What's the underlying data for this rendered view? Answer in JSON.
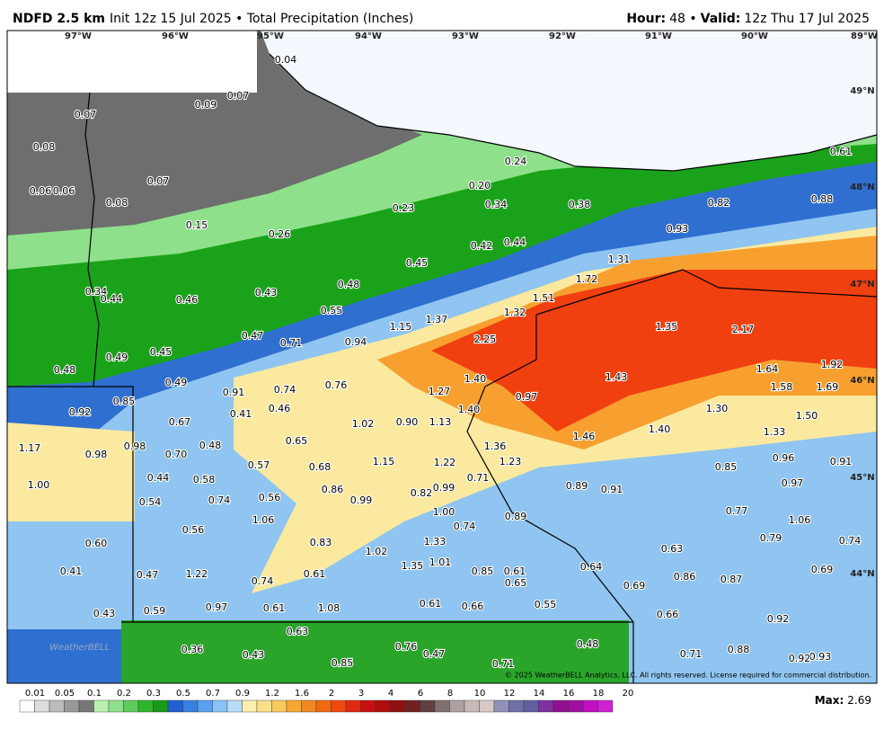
{
  "header": {
    "model": "NDFD 2.5 km",
    "info": "Init 12z 15 Jul 2025 • Total Precipitation (Inches)",
    "hour_label": "Hour:",
    "hour": "48 •",
    "valid_label": "Valid:",
    "valid": "12z Thu 17 Jul 2025"
  },
  "map": {
    "longitudes": [
      "97°W",
      "96°W",
      "95°W",
      "94°W",
      "93°W",
      "92°W",
      "91°W",
      "90°W",
      "89°W"
    ],
    "latitudes": [
      "49°N",
      "48°N",
      "47°N",
      "46°N",
      "45°N",
      "44°N"
    ],
    "labels": [
      "0.04",
      "0.07",
      "0.09",
      "0.07",
      "0.08",
      "0.24",
      "0.61",
      "0.06",
      "0.06",
      "0.07",
      "0.08",
      "0.20",
      "0.88",
      "0.82",
      "0.23",
      "0.34",
      "0.38",
      "0.15",
      "0.93",
      "0.26",
      "0.42",
      "0.44",
      "1.31",
      "0.45",
      "1.72",
      "0.34",
      "0.44",
      "0.46",
      "0.43",
      "0.48",
      "1.51",
      "0.55",
      "1.32",
      "1.37",
      "1.15",
      "1.35",
      "2.17",
      "0.47",
      "0.71",
      "0.94",
      "2.25",
      "0.45",
      "0.49",
      "0.48",
      "1.64",
      "1.92",
      "1.40",
      "1.43",
      "0.49",
      "0.91",
      "0.74",
      "0.76",
      "1.27",
      "0.97",
      "1.58",
      "1.69",
      "0.85",
      "0.92",
      "1.40",
      "0.41",
      "0.46",
      "1.30",
      "1.50",
      "0.67",
      "1.02",
      "0.90",
      "1.13",
      "1.40",
      "1.33",
      "1.46",
      "1.17",
      "0.98",
      "0.98",
      "0.48",
      "0.65",
      "1.36",
      "0.70",
      "1.15",
      "1.22",
      "1.23",
      "0.96",
      "0.91",
      "0.57",
      "0.68",
      "0.85",
      "0.44",
      "0.58",
      "0.71",
      "1.00",
      "0.86",
      "0.99",
      "0.82",
      "0.89",
      "0.91",
      "0.97",
      "0.74",
      "0.56",
      "0.99",
      "0.54",
      "1.00",
      "0.77",
      "0.89",
      "0.74",
      "1.06",
      "1.06",
      "0.56",
      "0.60",
      "0.83",
      "1.33",
      "0.79",
      "0.74",
      "1.02",
      "0.63",
      "1.01",
      "1.35",
      "0.41",
      "0.47",
      "1.22",
      "0.61",
      "0.85",
      "0.61",
      "0.64",
      "0.69",
      "0.86",
      "0.87",
      "0.74",
      "0.65",
      "0.69",
      "0.97",
      "0.61",
      "1.08",
      "0.61",
      "0.66",
      "0.55",
      "0.43",
      "0.59",
      "0.66",
      "0.92",
      "0.63",
      "0.76",
      "0.48",
      "0.36",
      "0.43",
      "0.47",
      "0.71",
      "0.88",
      "0.93",
      "0.92",
      "0.85",
      "0.71"
    ],
    "copyright": "© 2025 WeatherBELL Analytics, LLC. All rights reserved. License required for commercial distribution.",
    "logo": "WeatherBELL"
  },
  "legend": {
    "labels": [
      "0.01",
      "0.05",
      "0.1",
      "0.2",
      "0.3",
      "0.5",
      "0.7",
      "0.9",
      "1.2",
      "1.6",
      "2",
      "3",
      "4",
      "6",
      "8",
      "10",
      "12",
      "14",
      "16",
      "18",
      "20"
    ]
  },
  "footer": {
    "max_label": "Max:",
    "max": "2.69"
  }
}
